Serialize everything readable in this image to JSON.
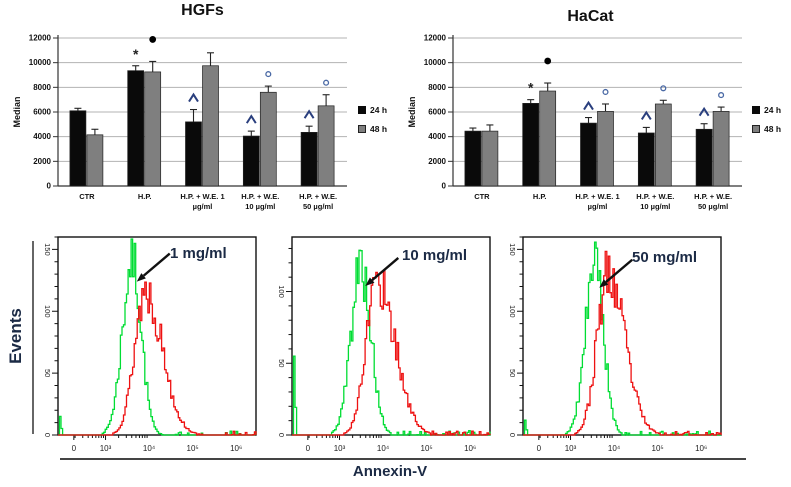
{
  "chart_data": [
    {
      "id": "hgfs",
      "type": "grouped-bar",
      "title": "HGFs",
      "ylabel": "Median",
      "ylim": [
        0,
        12000
      ],
      "y_ticks": [
        0,
        2000,
        4000,
        6000,
        8000,
        10000,
        12000
      ],
      "grid": true,
      "legend_position": "right",
      "categories": [
        [
          "CTR"
        ],
        [
          "H.P."
        ],
        [
          "H.P. + W.E. 1",
          "µg/ml"
        ],
        [
          "H.P. + W.E.",
          "10 µg/ml"
        ],
        [
          "H.P. + W.E.",
          "50 µg/ml"
        ]
      ],
      "series": [
        {
          "name": "24 h",
          "color": "#0a0a0a",
          "values": [
            6100,
            9350,
            5200,
            4050,
            4350
          ],
          "errors": [
            200,
            400,
            1000,
            400,
            500
          ],
          "annotations": [
            "",
            "*",
            "^",
            "^",
            "^"
          ]
        },
        {
          "name": "48 h",
          "color": "#7f7f7f",
          "values": [
            4150,
            9250,
            9750,
            7600,
            6500
          ],
          "errors": [
            450,
            850,
            1050,
            500,
            900
          ],
          "annotations": [
            "",
            "●",
            "",
            "°",
            "°"
          ]
        }
      ]
    },
    {
      "id": "hacat",
      "type": "grouped-bar",
      "title": "HaCat",
      "ylabel": "Median",
      "ylim": [
        0,
        12000
      ],
      "y_ticks": [
        0,
        2000,
        4000,
        6000,
        8000,
        10000,
        12000
      ],
      "grid": true,
      "legend_position": "right",
      "categories": [
        [
          "CTR"
        ],
        [
          "H.P."
        ],
        [
          "H.P. + W.E. 1",
          "µg/ml"
        ],
        [
          "H.P. + W.E.",
          "10 µg/ml"
        ],
        [
          "H.P. + W.E.",
          "50 µg/ml"
        ]
      ],
      "series": [
        {
          "name": "24 h",
          "color": "#0a0a0a",
          "values": [
            4450,
            6700,
            5100,
            4300,
            4600
          ],
          "errors": [
            250,
            300,
            450,
            450,
            450
          ],
          "annotations": [
            "",
            "*",
            "^",
            "^",
            "^"
          ]
        },
        {
          "name": "48 h",
          "color": "#7f7f7f",
          "values": [
            4450,
            7700,
            6050,
            6650,
            6050
          ],
          "errors": [
            500,
            650,
            600,
            300,
            350
          ],
          "annotations": [
            "",
            "●",
            "°",
            "°",
            "°"
          ]
        }
      ]
    },
    {
      "id": "h1",
      "type": "histogram-overlay",
      "label": "1 mg/ml",
      "ylim": [
        0,
        160
      ],
      "y_ticks": [
        0,
        50,
        100,
        150
      ],
      "x_ticks": [
        {
          "label": "0",
          "exp": null
        },
        {
          "label": "10³",
          "exp": 3
        },
        {
          "label": "10⁴",
          "exp": 4
        },
        {
          "label": "10⁵",
          "exp": 5
        },
        {
          "label": "10⁶",
          "exp": 6
        }
      ],
      "series": [
        {
          "name": "green",
          "color": "#00dd33",
          "peak_x": 4000,
          "peak_events": 145,
          "spread_left": 0.05,
          "spread_right": 0.045,
          "left_spike": 15,
          "seed": 7
        },
        {
          "name": "red",
          "color": "#ee1111",
          "peak_x": 8000,
          "peak_events": 120,
          "spread_left": 0.055,
          "spread_right": 0.085,
          "left_spike": 0,
          "seed": 13
        }
      ]
    },
    {
      "id": "h2",
      "type": "histogram-overlay",
      "label": "10 mg/ml",
      "ylim": [
        0,
        138
      ],
      "y_ticks": [
        0,
        50,
        100
      ],
      "x_ticks": [
        {
          "label": "0",
          "exp": null
        },
        {
          "label": "10³",
          "exp": 3
        },
        {
          "label": "10⁴",
          "exp": 4
        },
        {
          "label": "10⁵",
          "exp": 5
        },
        {
          "label": "10⁶",
          "exp": 6
        }
      ],
      "series": [
        {
          "name": "green",
          "color": "#00dd33",
          "peak_x": 3000,
          "peak_events": 122,
          "spread_left": 0.05,
          "spread_right": 0.05,
          "left_spike": 55,
          "seed": 5
        },
        {
          "name": "red",
          "color": "#ee1111",
          "peak_x": 7000,
          "peak_events": 112,
          "spread_left": 0.055,
          "spread_right": 0.09,
          "left_spike": 0,
          "seed": 17
        }
      ]
    },
    {
      "id": "h3",
      "type": "histogram-overlay",
      "label": "50 mg/ml",
      "ylim": [
        0,
        160
      ],
      "y_ticks": [
        0,
        50,
        100,
        150
      ],
      "x_ticks": [
        {
          "label": "0",
          "exp": null
        },
        {
          "label": "10³",
          "exp": 3
        },
        {
          "label": "10⁴",
          "exp": 4
        },
        {
          "label": "10⁵",
          "exp": 5
        },
        {
          "label": "10⁶",
          "exp": 6
        }
      ],
      "series": [
        {
          "name": "green",
          "color": "#00dd33",
          "peak_x": 3500,
          "peak_events": 140,
          "spread_left": 0.048,
          "spread_right": 0.045,
          "left_spike": 12,
          "seed": 9
        },
        {
          "name": "red",
          "color": "#ee1111",
          "peak_x": 7000,
          "peak_events": 132,
          "spread_left": 0.055,
          "spread_right": 0.085,
          "left_spike": 0,
          "seed": 23
        }
      ]
    }
  ],
  "shared_axes": {
    "y_label": "Events",
    "x_label": "Annexin-V"
  }
}
